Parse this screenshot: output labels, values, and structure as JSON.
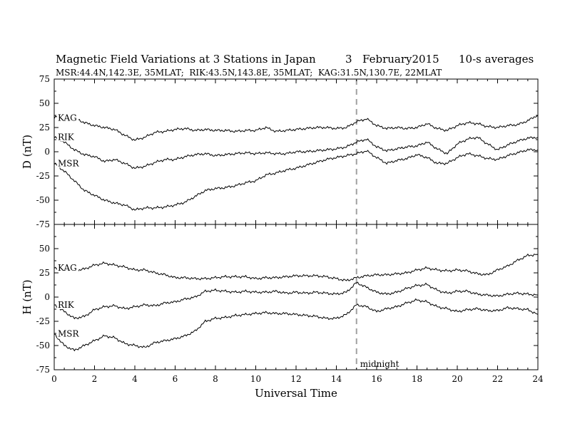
{
  "header": {
    "title": "Magnetic Field Variations at 3 Stations in Japan",
    "date_day": "3",
    "date_month_year": "February2015",
    "averaging": "10-s averages",
    "stations_line": "MSR:44.4N,142.3E, 35MLAT;  RIK:43.5N,143.8E, 35MLAT;  KAG:31.5N,130.7E, 22MLAT"
  },
  "colors": {
    "trace": "#000000",
    "frame": "#000000",
    "marker": "#a0a0a0"
  },
  "chart_data": {
    "type": "line",
    "xlabel": "Universal Time",
    "xlim": [
      0,
      24
    ],
    "xticks": [
      "0",
      "2",
      "4",
      "6",
      "8",
      "10",
      "12",
      "14",
      "16",
      "18",
      "20",
      "22",
      "24"
    ],
    "marker": {
      "x": 15,
      "label": "midnight",
      "style": "dashed"
    },
    "panels": [
      {
        "ylabel": "D (nT)",
        "ylim": [
          -75,
          75
        ],
        "yticks": [
          "75",
          "50",
          "25",
          "0",
          "-25",
          "-50",
          "-75"
        ],
        "series": [
          {
            "name": "KAG",
            "x": [
              0,
              0.5,
              1,
              1.5,
              2,
              2.5,
              3,
              3.5,
              4,
              4.5,
              5,
              5.5,
              6,
              6.5,
              7,
              7.5,
              8,
              8.5,
              9,
              9.5,
              10,
              10.5,
              11,
              11.5,
              12,
              12.5,
              13,
              13.5,
              14,
              14.5,
              15,
              15.5,
              16,
              16.5,
              17,
              17.5,
              18,
              18.5,
              19,
              19.5,
              20,
              20.5,
              21,
              21.5,
              22,
              22.5,
              23,
              23.5,
              24
            ],
            "y": [
              35,
              38,
              35,
              30,
              27,
              25,
              23,
              17,
              12,
              15,
              20,
              21,
              23,
              24,
              22,
              23,
              22,
              22,
              21,
              22,
              22,
              25,
              21,
              22,
              23,
              24,
              25,
              25,
              24,
              25,
              31,
              34,
              27,
              24,
              25,
              24,
              25,
              29,
              24,
              22,
              27,
              30,
              29,
              26,
              25,
              27,
              28,
              32,
              38
            ]
          },
          {
            "name": "RIK",
            "x": [
              0,
              0.5,
              1,
              1.5,
              2,
              2.5,
              3,
              3.5,
              4,
              4.5,
              5,
              5.5,
              6,
              6.5,
              7,
              7.5,
              8,
              8.5,
              9,
              9.5,
              10,
              10.5,
              11,
              11.5,
              12,
              12.5,
              13,
              13.5,
              14,
              14.5,
              15,
              15.5,
              16,
              16.5,
              17,
              17.5,
              18,
              18.5,
              19,
              19.5,
              20,
              20.5,
              21,
              21.5,
              22,
              22.5,
              23,
              23.5,
              24
            ],
            "y": [
              15,
              10,
              2,
              -3,
              -5,
              -10,
              -8,
              -12,
              -17,
              -15,
              -11,
              -8,
              -8,
              -5,
              -3,
              -2,
              -4,
              -3,
              -2,
              -1,
              -2,
              -1,
              -2,
              -2,
              0,
              0,
              1,
              2,
              3,
              5,
              10,
              13,
              5,
              1,
              3,
              5,
              6,
              10,
              3,
              -2,
              8,
              13,
              15,
              8,
              2,
              7,
              11,
              14,
              15
            ]
          },
          {
            "name": "MSR",
            "x": [
              0,
              0.5,
              1,
              1.5,
              2,
              2.5,
              3,
              3.5,
              4,
              4.5,
              5,
              5.5,
              6,
              6.5,
              7,
              7.5,
              8,
              8.5,
              9,
              9.5,
              10,
              10.5,
              11,
              11.5,
              12,
              12.5,
              13,
              13.5,
              14,
              14.5,
              15,
              15.5,
              16,
              16.5,
              17,
              17.5,
              18,
              18.5,
              19,
              19.5,
              20,
              20.5,
              21,
              21.5,
              22,
              22.5,
              23,
              23.5,
              24
            ],
            "y": [
              -12,
              -20,
              -30,
              -40,
              -45,
              -50,
              -53,
              -55,
              -60,
              -58,
              -58,
              -57,
              -55,
              -52,
              -46,
              -40,
              -38,
              -37,
              -35,
              -32,
              -30,
              -24,
              -22,
              -19,
              -17,
              -14,
              -11,
              -8,
              -6,
              -4,
              -2,
              1,
              -6,
              -12,
              -9,
              -7,
              -3,
              -6,
              -12,
              -12,
              -6,
              -2,
              -4,
              -7,
              -8,
              -4,
              -1,
              2,
              2
            ]
          }
        ]
      },
      {
        "ylabel": "H (nT)",
        "ylim": [
          -75,
          75
        ],
        "yticks": [
          "50",
          "25",
          "0",
          "-25",
          "-50",
          "-75"
        ],
        "series": [
          {
            "name": "KAG",
            "x": [
              0,
              0.5,
              1,
              1.5,
              2,
              2.5,
              3,
              3.5,
              4,
              4.5,
              5,
              5.5,
              6,
              6.5,
              7,
              7.5,
              8,
              8.5,
              9,
              9.5,
              10,
              10.5,
              11,
              11.5,
              12,
              12.5,
              13,
              13.5,
              14,
              14.5,
              15,
              15.5,
              16,
              16.5,
              17,
              17.5,
              18,
              18.5,
              19,
              19.5,
              20,
              20.5,
              21,
              21.5,
              22,
              22.5,
              23,
              23.5,
              24
            ],
            "y": [
              30,
              28,
              27,
              29,
              33,
              35,
              33,
              31,
              28,
              28,
              25,
              23,
              20,
              20,
              19,
              19,
              20,
              21,
              21,
              21,
              19,
              20,
              20,
              21,
              22,
              22,
              22,
              21,
              19,
              17,
              20,
              22,
              23,
              23,
              24,
              25,
              28,
              30,
              28,
              27,
              28,
              27,
              24,
              23,
              28,
              32,
              38,
              43,
              44
            ]
          },
          {
            "name": "RIK",
            "x": [
              0,
              0.5,
              1,
              1.5,
              2,
              2.5,
              3,
              3.5,
              4,
              4.5,
              5,
              5.5,
              6,
              6.5,
              7,
              7.5,
              8,
              8.5,
              9,
              9.5,
              10,
              10.5,
              11,
              11.5,
              12,
              12.5,
              13,
              13.5,
              14,
              14.5,
              15,
              15.5,
              16,
              16.5,
              17,
              17.5,
              18,
              18.5,
              19,
              19.5,
              20,
              20.5,
              21,
              21.5,
              22,
              22.5,
              23,
              23.5,
              24
            ],
            "y": [
              -8,
              -15,
              -22,
              -20,
              -13,
              -10,
              -9,
              -12,
              -10,
              -8,
              -9,
              -6,
              -5,
              -2,
              0,
              6,
              7,
              6,
              5,
              6,
              5,
              5,
              6,
              4,
              5,
              4,
              5,
              4,
              3,
              5,
              15,
              10,
              5,
              3,
              5,
              9,
              12,
              13,
              7,
              4,
              6,
              6,
              3,
              2,
              1,
              3,
              4,
              3,
              2
            ]
          },
          {
            "name": "MSR",
            "x": [
              0,
              0.5,
              1,
              1.5,
              2,
              2.5,
              3,
              3.5,
              4,
              4.5,
              5,
              5.5,
              6,
              6.5,
              7,
              7.5,
              8,
              8.5,
              9,
              9.5,
              10,
              10.5,
              11,
              11.5,
              12,
              12.5,
              13,
              13.5,
              14,
              14.5,
              15,
              15.5,
              16,
              16.5,
              17,
              17.5,
              18,
              18.5,
              19,
              19.5,
              20,
              20.5,
              21,
              21.5,
              22,
              22.5,
              23,
              23.5,
              24
            ],
            "y": [
              -38,
              -50,
              -55,
              -50,
              -45,
              -40,
              -42,
              -48,
              -50,
              -52,
              -47,
              -45,
              -43,
              -40,
              -35,
              -25,
              -22,
              -21,
              -19,
              -18,
              -17,
              -16,
              -17,
              -17,
              -18,
              -19,
              -20,
              -22,
              -22,
              -18,
              -8,
              -10,
              -15,
              -12,
              -10,
              -6,
              -3,
              -5,
              -10,
              -12,
              -15,
              -13,
              -12,
              -14,
              -14,
              -11,
              -12,
              -13,
              -18
            ]
          }
        ]
      }
    ]
  }
}
